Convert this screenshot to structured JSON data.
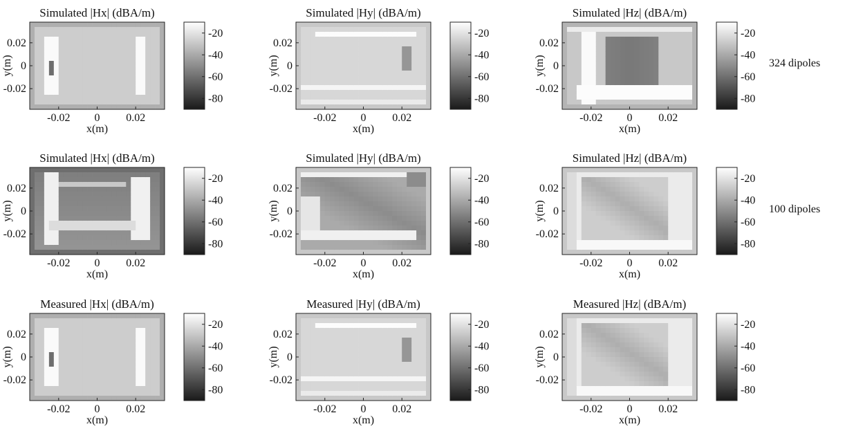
{
  "figure": {
    "row_labels": [
      "324 dipoles",
      "100 dipoles",
      ""
    ]
  },
  "chart_data": [
    {
      "type": "heatmap",
      "title": "Simulated |Hx| (dBA/m)",
      "xlabel": "x(m)",
      "ylabel": "y(m)",
      "x_ticks": [
        "-0.02",
        "0",
        "0.02"
      ],
      "y_ticks": [
        "0.02",
        "0",
        "-0.02"
      ],
      "x_tick_values": [
        -0.02,
        0,
        0.02
      ],
      "y_tick_values": [
        0.02,
        0,
        -0.02
      ],
      "xlim": [
        -0.035,
        0.035
      ],
      "ylim": [
        -0.038,
        0.038
      ],
      "colorbar": {
        "ticks": [
          "-20",
          "-40",
          "-60",
          "-80"
        ],
        "tick_values": [
          -20,
          -40,
          -60,
          -80
        ],
        "range": [
          -90,
          -10
        ],
        "colormap": "gray"
      },
      "pattern": "hx"
    },
    {
      "type": "heatmap",
      "title": "Simulated |Hy| (dBA/m)",
      "xlabel": "x(m)",
      "ylabel": "y(m)",
      "x_ticks": [
        "-0.02",
        "0",
        "0.02"
      ],
      "y_ticks": [
        "0.02",
        "0",
        "-0.02"
      ],
      "x_tick_values": [
        -0.02,
        0,
        0.02
      ],
      "y_tick_values": [
        0.02,
        0,
        -0.02
      ],
      "xlim": [
        -0.035,
        0.035
      ],
      "ylim": [
        -0.038,
        0.038
      ],
      "colorbar": {
        "ticks": [
          "-20",
          "-40",
          "-60",
          "-80"
        ],
        "tick_values": [
          -20,
          -40,
          -60,
          -80
        ],
        "range": [
          -90,
          -10
        ],
        "colormap": "gray"
      },
      "pattern": "hy"
    },
    {
      "type": "heatmap",
      "title": "Simulated |Hz| (dBA/m)",
      "xlabel": "x(m)",
      "ylabel": "y(m)",
      "x_ticks": [
        "-0.02",
        "0",
        "0.02"
      ],
      "y_ticks": [
        "0.02",
        "0",
        "-0.02"
      ],
      "x_tick_values": [
        -0.02,
        0,
        0.02
      ],
      "y_tick_values": [
        0.02,
        0,
        -0.02
      ],
      "xlim": [
        -0.035,
        0.035
      ],
      "ylim": [
        -0.038,
        0.038
      ],
      "colorbar": {
        "ticks": [
          "-20",
          "-40",
          "-60",
          "-80"
        ],
        "tick_values": [
          -20,
          -40,
          -60,
          -80
        ],
        "range": [
          -90,
          -10
        ],
        "colormap": "gray"
      },
      "pattern": "hz"
    },
    {
      "type": "heatmap",
      "title": "Simulated |Hx| (dBA/m)",
      "xlabel": "x(m)",
      "ylabel": "y(m)",
      "x_ticks": [
        "-0.02",
        "0",
        "0.02"
      ],
      "y_ticks": [
        "0.02",
        "0",
        "-0.02"
      ],
      "x_tick_values": [
        -0.02,
        0,
        0.02
      ],
      "y_tick_values": [
        0.02,
        0,
        -0.02
      ],
      "xlim": [
        -0.035,
        0.035
      ],
      "ylim": [
        -0.038,
        0.038
      ],
      "colorbar": {
        "ticks": [
          "-20",
          "-40",
          "-60",
          "-80"
        ],
        "tick_values": [
          -20,
          -40,
          -60,
          -80
        ],
        "range": [
          -90,
          -10
        ],
        "colormap": "gray"
      },
      "pattern": "hx_dark"
    },
    {
      "type": "heatmap",
      "title": "Simulated |Hy| (dBA/m)",
      "xlabel": "x(m)",
      "ylabel": "y(m)",
      "x_ticks": [
        "-0.02",
        "0",
        "0.02"
      ],
      "y_ticks": [
        "0.02",
        "0",
        "-0.02"
      ],
      "x_tick_values": [
        -0.02,
        0,
        0.02
      ],
      "y_tick_values": [
        0.02,
        0,
        -0.02
      ],
      "xlim": [
        -0.035,
        0.035
      ],
      "ylim": [
        -0.038,
        0.038
      ],
      "colorbar": {
        "ticks": [
          "-20",
          "-40",
          "-60",
          "-80"
        ],
        "tick_values": [
          -20,
          -40,
          -60,
          -80
        ],
        "range": [
          -90,
          -10
        ],
        "colormap": "gray"
      },
      "pattern": "hy_dark"
    },
    {
      "type": "heatmap",
      "title": "Simulated |Hz| (dBA/m)",
      "xlabel": "x(m)",
      "ylabel": "y(m)",
      "x_ticks": [
        "-0.02",
        "0",
        "0.02"
      ],
      "y_ticks": [
        "0.02",
        "0",
        "-0.02"
      ],
      "x_tick_values": [
        -0.02,
        0,
        0.02
      ],
      "y_tick_values": [
        0.02,
        0,
        -0.02
      ],
      "xlim": [
        -0.035,
        0.035
      ],
      "ylim": [
        -0.038,
        0.038
      ],
      "colorbar": {
        "ticks": [
          "-20",
          "-40",
          "-60",
          "-80"
        ],
        "tick_values": [
          -20,
          -40,
          -60,
          -80
        ],
        "range": [
          -90,
          -10
        ],
        "colormap": "gray"
      },
      "pattern": "hz_diag"
    },
    {
      "type": "heatmap",
      "title": "Measured |Hx| (dBA/m)",
      "xlabel": "x(m)",
      "ylabel": "y(m)",
      "x_ticks": [
        "-0.02",
        "0",
        "0.02"
      ],
      "y_ticks": [
        "0.02",
        "0",
        "-0.02"
      ],
      "x_tick_values": [
        -0.02,
        0,
        0.02
      ],
      "y_tick_values": [
        0.02,
        0,
        -0.02
      ],
      "xlim": [
        -0.035,
        0.035
      ],
      "ylim": [
        -0.038,
        0.038
      ],
      "colorbar": {
        "ticks": [
          "-20",
          "-40",
          "-60",
          "-80"
        ],
        "tick_values": [
          -20,
          -40,
          -60,
          -80
        ],
        "range": [
          -90,
          -10
        ],
        "colormap": "gray"
      },
      "pattern": "hx"
    },
    {
      "type": "heatmap",
      "title": "Measured |Hy| (dBA/m)",
      "xlabel": "x(m)",
      "ylabel": "y(m)",
      "x_ticks": [
        "-0.02",
        "0",
        "0.02"
      ],
      "y_ticks": [
        "0.02",
        "0",
        "-0.02"
      ],
      "x_tick_values": [
        -0.02,
        0,
        0.02
      ],
      "y_tick_values": [
        0.02,
        0,
        -0.02
      ],
      "xlim": [
        -0.035,
        0.035
      ],
      "ylim": [
        -0.038,
        0.038
      ],
      "colorbar": {
        "ticks": [
          "-20",
          "-40",
          "-60",
          "-80"
        ],
        "tick_values": [
          -20,
          -40,
          -60,
          -80
        ],
        "range": [
          -90,
          -10
        ],
        "colormap": "gray"
      },
      "pattern": "hy"
    },
    {
      "type": "heatmap",
      "title": "Measured |Hz| (dBA/m)",
      "xlabel": "x(m)",
      "ylabel": "y(m)",
      "x_ticks": [
        "-0.02",
        "0",
        "0.02"
      ],
      "y_ticks": [
        "0.02",
        "0",
        "-0.02"
      ],
      "x_tick_values": [
        -0.02,
        0,
        0.02
      ],
      "y_tick_values": [
        0.02,
        0,
        -0.02
      ],
      "xlim": [
        -0.035,
        0.035
      ],
      "ylim": [
        -0.038,
        0.038
      ],
      "colorbar": {
        "ticks": [
          "-20",
          "-40",
          "-60",
          "-80"
        ],
        "tick_values": [
          -20,
          -40,
          -60,
          -80
        ],
        "range": [
          -90,
          -10
        ],
        "colormap": "gray"
      },
      "pattern": "hz_diag"
    }
  ]
}
